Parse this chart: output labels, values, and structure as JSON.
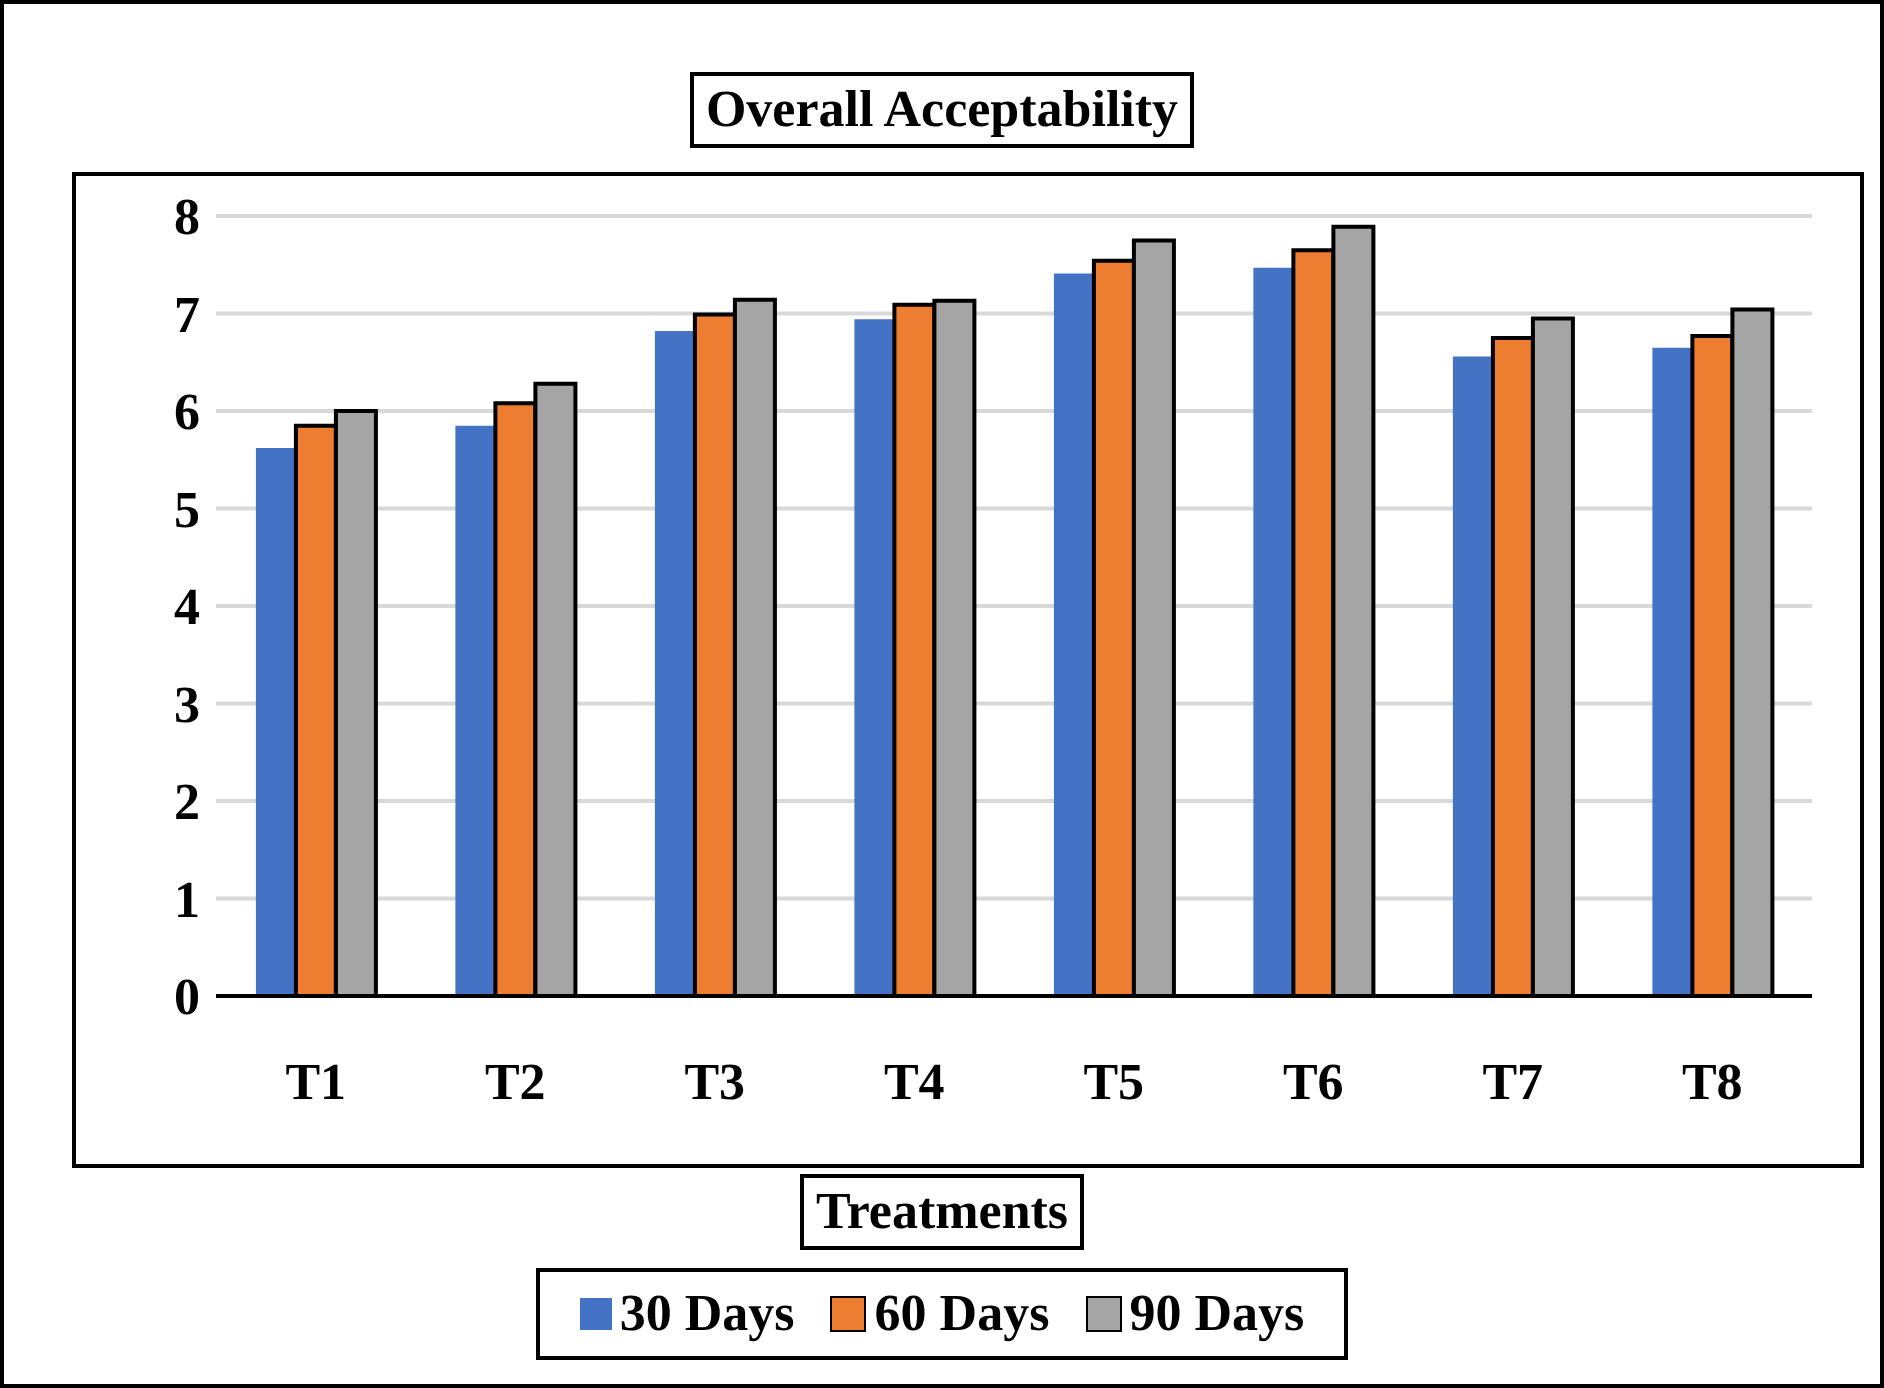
{
  "chart_data": {
    "type": "bar",
    "title": "Overall Acceptability",
    "xlabel": "Treatments",
    "categories": [
      "T1",
      "T2",
      "T3",
      "T4",
      "T5",
      "T6",
      "T7",
      "T8"
    ],
    "series": [
      {
        "name": "30 Days",
        "color": "#4472c4",
        "values": [
          5.62,
          5.85,
          6.82,
          6.94,
          7.41,
          7.47,
          6.56,
          6.65
        ]
      },
      {
        "name": "60 Days",
        "color": "#ed7d31",
        "values": [
          5.85,
          6.08,
          6.99,
          7.09,
          7.54,
          7.65,
          6.75,
          6.77
        ]
      },
      {
        "name": "90 Days",
        "color": "#a5a5a5",
        "values": [
          6.0,
          6.28,
          7.14,
          7.13,
          7.75,
          7.89,
          6.95,
          7.04
        ]
      }
    ],
    "ylim": [
      0,
      8
    ],
    "yticks": [
      0,
      1,
      2,
      3,
      4,
      5,
      6,
      7,
      8
    ],
    "grid": "y",
    "legend": "bottom"
  }
}
